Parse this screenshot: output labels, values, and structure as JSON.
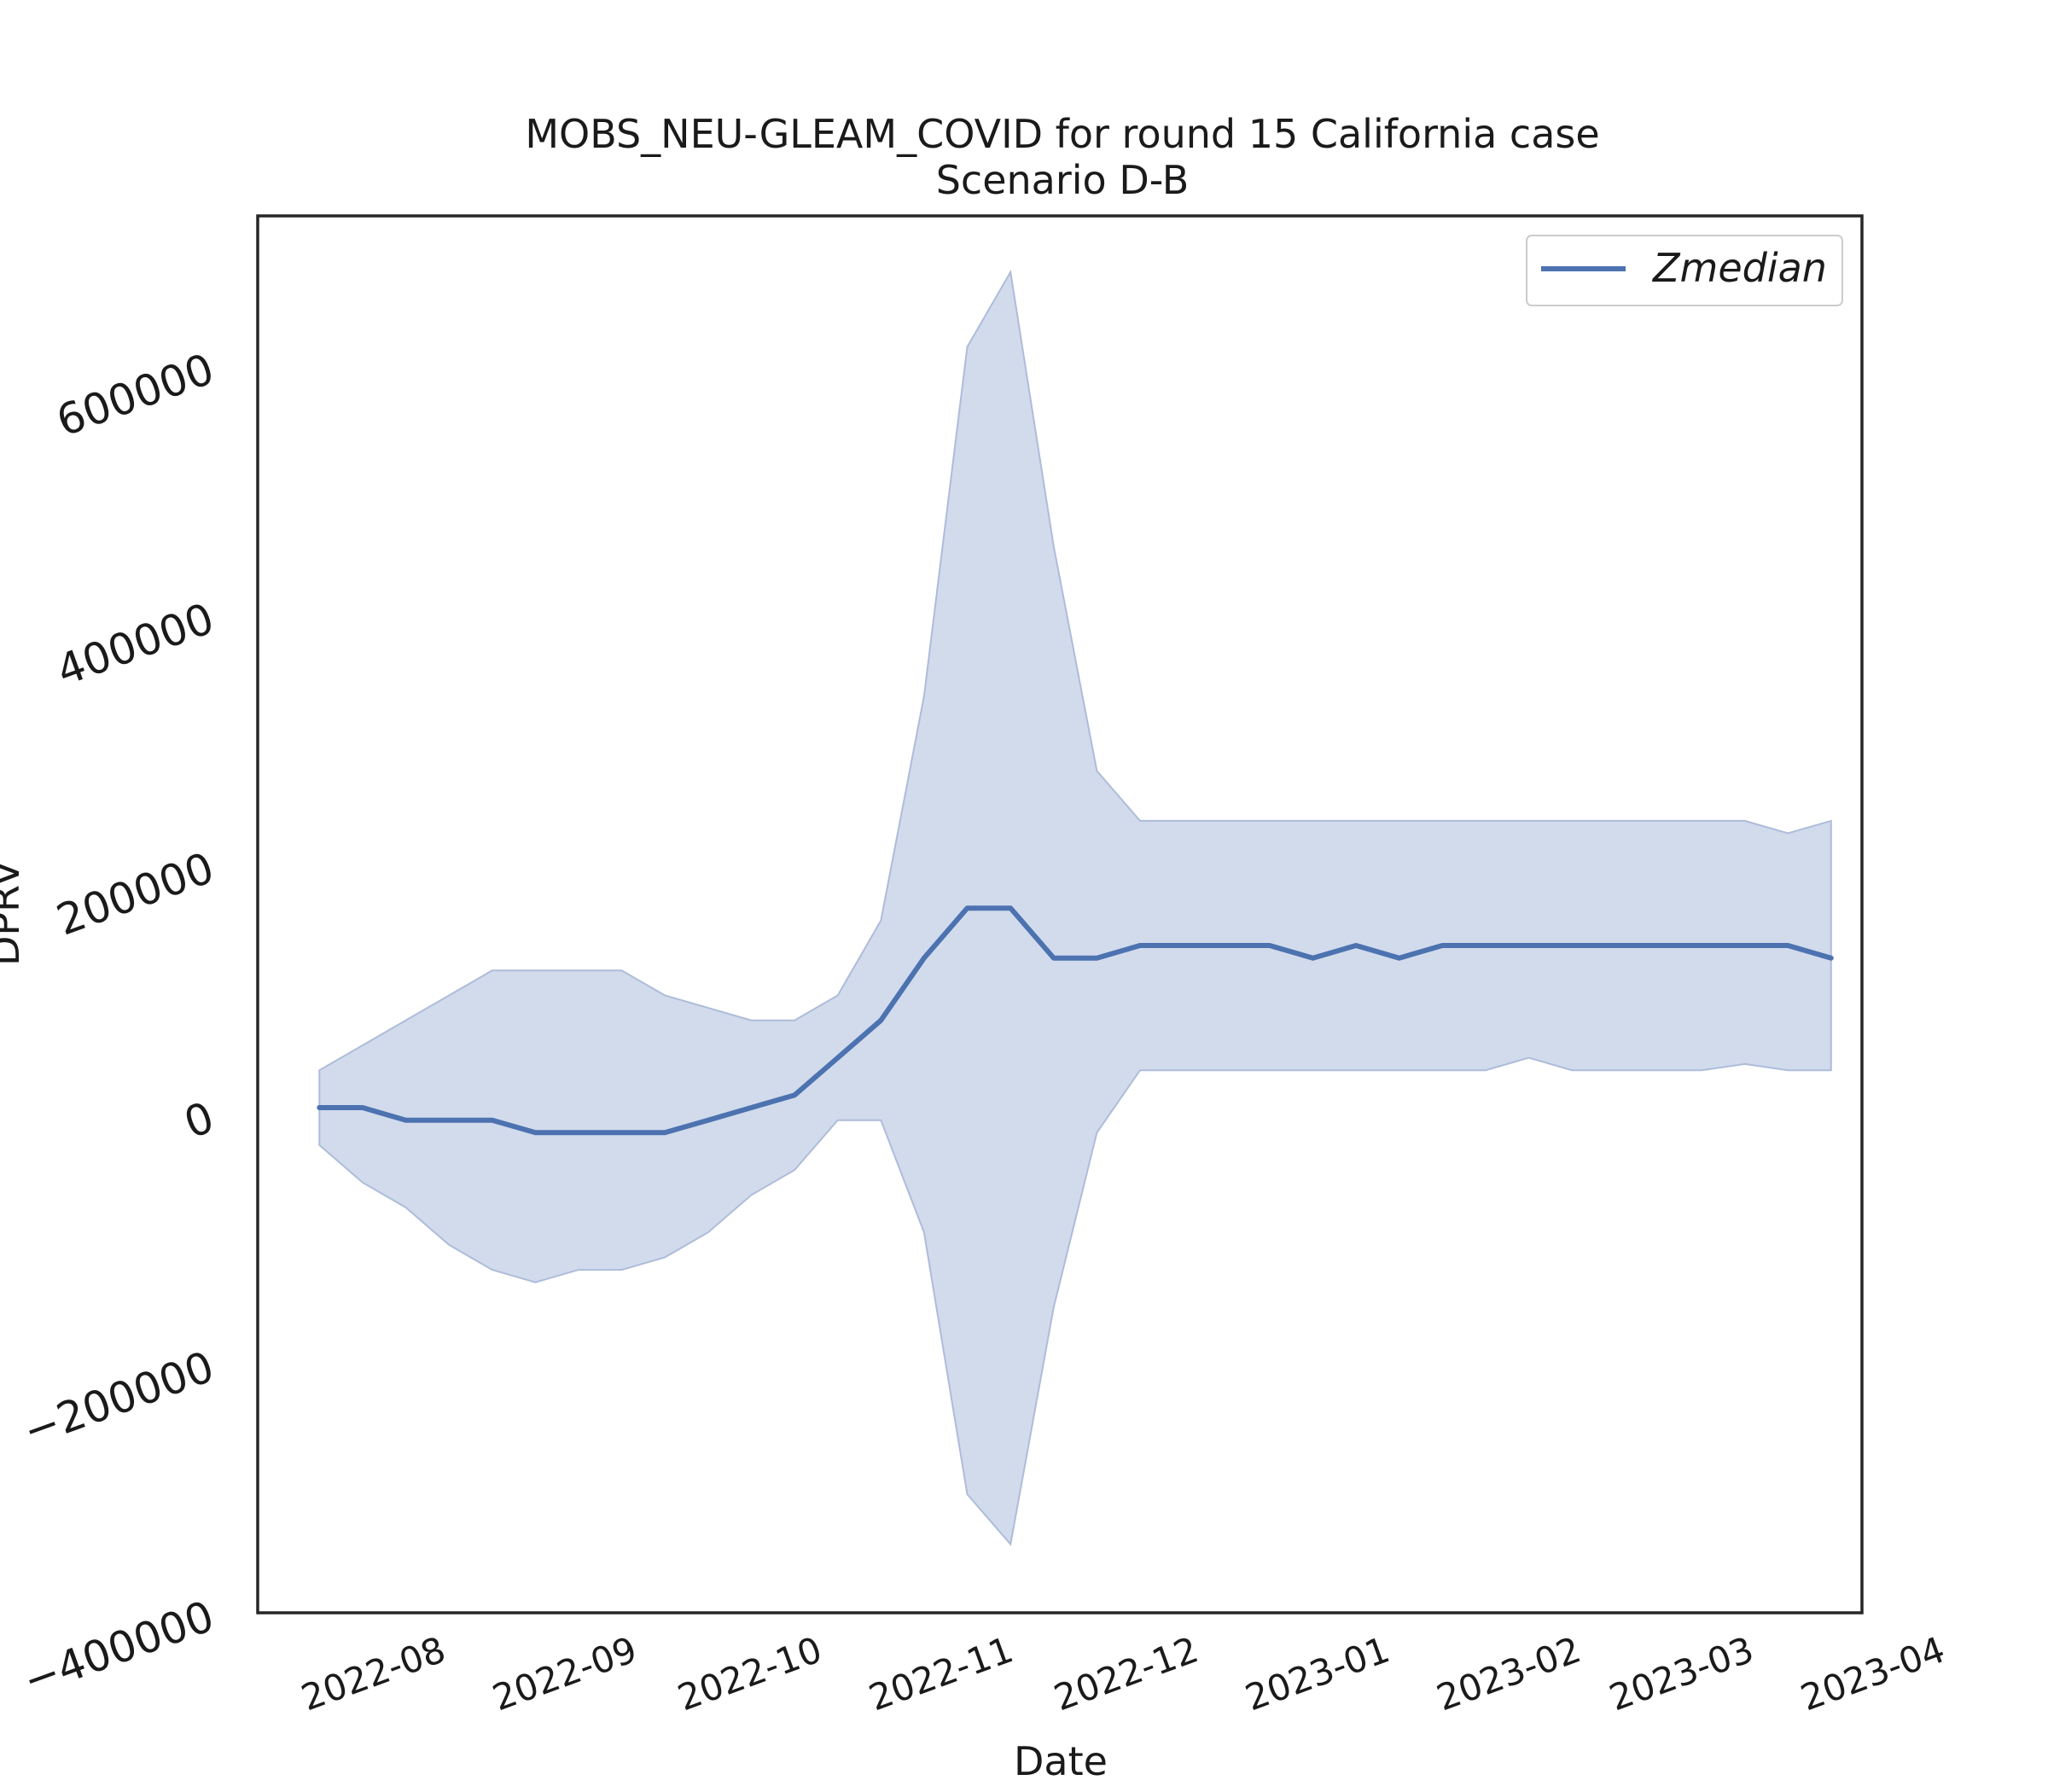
{
  "chart_data": {
    "type": "line",
    "title": "MOBS_NEU-GLEAM_COVID for round 15 California case",
    "subtitle": "Scenario D-B",
    "xlabel": "Date",
    "ylabel": "DPRV",
    "xlim": [
      "2022-07-15",
      "2023-04-01"
    ],
    "ylim": [
      -400000,
      720000
    ],
    "x_ticks": [
      "2022-08",
      "2022-09",
      "2022-10",
      "2022-11",
      "2022-12",
      "2023-01",
      "2023-02",
      "2023-03",
      "2023-04"
    ],
    "y_ticks": [
      -400000,
      -200000,
      0,
      200000,
      400000,
      600000
    ],
    "y_tick_labels": [
      "−400000",
      "−200000",
      "0",
      "200000",
      "400000",
      "600000"
    ],
    "grid": false,
    "legend": {
      "placement": "top-right",
      "entries": [
        "Zmedian"
      ]
    },
    "colors": {
      "line": "#4c72b0",
      "band_fill": "#c6d2e7",
      "band_edge": "#aebcd9"
    },
    "x": [
      "2022-07-25",
      "2022-08-01",
      "2022-08-08",
      "2022-08-15",
      "2022-08-22",
      "2022-08-29",
      "2022-09-05",
      "2022-09-12",
      "2022-09-19",
      "2022-09-26",
      "2022-10-03",
      "2022-10-10",
      "2022-10-17",
      "2022-10-24",
      "2022-10-31",
      "2022-11-07",
      "2022-11-14",
      "2022-11-21",
      "2022-11-28",
      "2022-12-05",
      "2022-12-12",
      "2022-12-19",
      "2022-12-26",
      "2023-01-02",
      "2023-01-09",
      "2023-01-16",
      "2023-01-23",
      "2023-01-30",
      "2023-02-06",
      "2023-02-13",
      "2023-02-20",
      "2023-02-27",
      "2023-03-06",
      "2023-03-13",
      "2023-03-20",
      "2023-03-27"
    ],
    "series": [
      {
        "name": "Zmedian",
        "values": [
          5000,
          5000,
          -5000,
          -5000,
          -5000,
          -15000,
          -15000,
          -15000,
          -15000,
          -5000,
          5000,
          15000,
          45000,
          75000,
          125000,
          165000,
          165000,
          125000,
          125000,
          135000,
          135000,
          135000,
          135000,
          125000,
          135000,
          125000,
          135000,
          135000,
          135000,
          135000,
          135000,
          135000,
          135000,
          135000,
          135000,
          125000
        ]
      }
    ],
    "band": {
      "lower": [
        -25000,
        -55000,
        -75000,
        -105000,
        -125000,
        -135000,
        -125000,
        -125000,
        -115000,
        -95000,
        -65000,
        -45000,
        -5000,
        -5000,
        -95000,
        -305000,
        -345000,
        -155000,
        -15000,
        35000,
        35000,
        35000,
        35000,
        35000,
        35000,
        35000,
        35000,
        35000,
        45000,
        35000,
        35000,
        35000,
        35000,
        40000,
        35000,
        35000
      ],
      "upper": [
        35000,
        55000,
        75000,
        95000,
        115000,
        115000,
        115000,
        115000,
        95000,
        85000,
        75000,
        75000,
        95000,
        155000,
        335000,
        615000,
        675000,
        455000,
        275000,
        235000,
        235000,
        235000,
        235000,
        235000,
        235000,
        235000,
        235000,
        235000,
        235000,
        235000,
        235000,
        235000,
        235000,
        235000,
        225000,
        235000
      ]
    }
  }
}
